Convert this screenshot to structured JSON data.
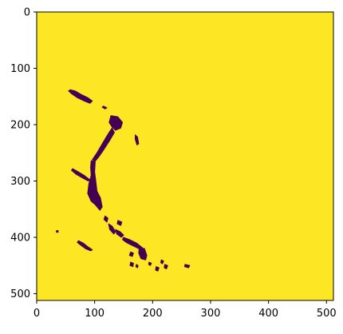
{
  "chart_data": {
    "type": "heatmap",
    "title": "",
    "xlabel": "",
    "ylabel": "",
    "xlim": [
      0,
      512
    ],
    "ylim": [
      512,
      0
    ],
    "x_ticks": [
      {
        "value": 0,
        "label": "0"
      },
      {
        "value": 100,
        "label": "100"
      },
      {
        "value": 200,
        "label": "200"
      },
      {
        "value": 300,
        "label": "300"
      },
      {
        "value": 400,
        "label": "400"
      },
      {
        "value": 500,
        "label": "500"
      }
    ],
    "y_ticks": [
      {
        "value": 0,
        "label": "0"
      },
      {
        "value": 100,
        "label": "100"
      },
      {
        "value": 200,
        "label": "200"
      },
      {
        "value": 300,
        "label": "300"
      },
      {
        "value": 400,
        "label": "400"
      },
      {
        "value": 500,
        "label": "500"
      }
    ],
    "colormap": "viridis",
    "background_value": 1,
    "background_color": "#fde725",
    "mask_value": 0,
    "mask_color": "#440154",
    "grid": false,
    "mask_regions": [
      {
        "name": "upper-diagonal-streak",
        "points": [
          [
            58,
            138
          ],
          [
            66,
            140
          ],
          [
            76,
            146
          ],
          [
            88,
            152
          ],
          [
            96,
            158
          ],
          [
            92,
            162
          ],
          [
            82,
            158
          ],
          [
            70,
            152
          ],
          [
            60,
            145
          ],
          [
            55,
            140
          ]
        ]
      },
      {
        "name": "small-dash-upper",
        "points": [
          [
            115,
            167
          ],
          [
            121,
            170
          ],
          [
            118,
            172
          ],
          [
            113,
            169
          ]
        ]
      },
      {
        "name": "main-arc-top",
        "points": [
          [
            128,
            184
          ],
          [
            140,
            186
          ],
          [
            148,
            196
          ],
          [
            145,
            206
          ],
          [
            136,
            210
          ],
          [
            130,
            204
          ],
          [
            125,
            196
          ]
        ]
      },
      {
        "name": "main-arc-middle",
        "points": [
          [
            130,
            206
          ],
          [
            134,
            214
          ],
          [
            126,
            228
          ],
          [
            116,
            244
          ],
          [
            108,
            256
          ],
          [
            100,
            266
          ],
          [
            96,
            262
          ],
          [
            104,
            250
          ],
          [
            112,
            236
          ],
          [
            120,
            222
          ],
          [
            126,
            212
          ]
        ]
      },
      {
        "name": "main-arc-lower",
        "points": [
          [
            94,
            264
          ],
          [
            101,
            266
          ],
          [
            100,
            284
          ],
          [
            102,
            300
          ],
          [
            104,
            318
          ],
          [
            110,
            330
          ],
          [
            113,
            346
          ],
          [
            109,
            352
          ],
          [
            101,
            342
          ],
          [
            94,
            336
          ],
          [
            88,
            322
          ],
          [
            90,
            305
          ],
          [
            94,
            290
          ],
          [
            93,
            276
          ]
        ]
      },
      {
        "name": "right-speck",
        "points": [
          [
            170,
            218
          ],
          [
            174,
            222
          ],
          [
            176,
            234
          ],
          [
            173,
            236
          ],
          [
            170,
            226
          ]
        ]
      },
      {
        "name": "left-slash",
        "points": [
          [
            62,
            278
          ],
          [
            72,
            284
          ],
          [
            82,
            290
          ],
          [
            92,
            298
          ],
          [
            89,
            300
          ],
          [
            78,
            294
          ],
          [
            68,
            288
          ],
          [
            60,
            281
          ]
        ]
      },
      {
        "name": "spot-under-arc",
        "points": [
          [
            118,
            362
          ],
          [
            123,
            366
          ],
          [
            121,
            373
          ],
          [
            116,
            368
          ]
        ]
      },
      {
        "name": "lower-chain-1",
        "points": [
          [
            124,
            376
          ],
          [
            130,
            380
          ],
          [
            136,
            390
          ],
          [
            133,
            394
          ],
          [
            126,
            386
          ]
        ]
      },
      {
        "name": "lower-chain-2",
        "points": [
          [
            136,
            386
          ],
          [
            144,
            390
          ],
          [
            150,
            396
          ],
          [
            146,
            400
          ],
          [
            138,
            394
          ]
        ]
      },
      {
        "name": "lower-chain-3",
        "points": [
          [
            140,
            370
          ],
          [
            147,
            373
          ],
          [
            145,
            379
          ],
          [
            139,
            376
          ]
        ]
      },
      {
        "name": "lower-right-diagonal",
        "points": [
          [
            150,
            400
          ],
          [
            160,
            404
          ],
          [
            172,
            410
          ],
          [
            182,
            418
          ],
          [
            180,
            422
          ],
          [
            168,
            416
          ],
          [
            156,
            410
          ],
          [
            148,
            404
          ]
        ]
      },
      {
        "name": "lower-right-blob",
        "points": [
          [
            177,
            418
          ],
          [
            186,
            420
          ],
          [
            190,
            432
          ],
          [
            188,
            440
          ],
          [
            180,
            438
          ],
          [
            176,
            428
          ]
        ]
      },
      {
        "name": "left-lower-slash",
        "points": [
          [
            72,
            406
          ],
          [
            80,
            410
          ],
          [
            90,
            418
          ],
          [
            96,
            422
          ],
          [
            93,
            424
          ],
          [
            84,
            420
          ],
          [
            76,
            414
          ],
          [
            70,
            409
          ]
        ]
      },
      {
        "name": "left-lower-dot",
        "points": [
          [
            34,
            388
          ],
          [
            37,
            388
          ],
          [
            37,
            391
          ],
          [
            34,
            391
          ]
        ]
      },
      {
        "name": "lower-center-fleck-1",
        "points": [
          [
            162,
            426
          ],
          [
            167,
            428
          ],
          [
            165,
            434
          ],
          [
            160,
            432
          ]
        ]
      },
      {
        "name": "lower-center-fleck-2",
        "points": [
          [
            162,
            444
          ],
          [
            167,
            446
          ],
          [
            166,
            452
          ],
          [
            161,
            450
          ]
        ]
      },
      {
        "name": "lower-center-fleck-3",
        "points": [
          [
            172,
            448
          ],
          [
            175,
            450
          ],
          [
            174,
            454
          ],
          [
            171,
            452
          ]
        ]
      },
      {
        "name": "lower-right-fleck-1",
        "points": [
          [
            194,
            444
          ],
          [
            198,
            446
          ],
          [
            196,
            450
          ],
          [
            193,
            448
          ]
        ]
      },
      {
        "name": "lower-right-fleck-2",
        "points": [
          [
            206,
            452
          ],
          [
            211,
            454
          ],
          [
            209,
            460
          ],
          [
            205,
            458
          ]
        ]
      },
      {
        "name": "lower-right-fleck-3",
        "points": [
          [
            215,
            440
          ],
          [
            219,
            442
          ],
          [
            217,
            447
          ],
          [
            214,
            445
          ]
        ]
      },
      {
        "name": "lower-right-fleck-4",
        "points": [
          [
            221,
            448
          ],
          [
            226,
            450
          ],
          [
            224,
            456
          ],
          [
            220,
            454
          ]
        ]
      },
      {
        "name": "right-end-dash",
        "points": [
          [
            256,
            448
          ],
          [
            264,
            450
          ],
          [
            262,
            454
          ],
          [
            255,
            452
          ]
        ]
      }
    ]
  }
}
